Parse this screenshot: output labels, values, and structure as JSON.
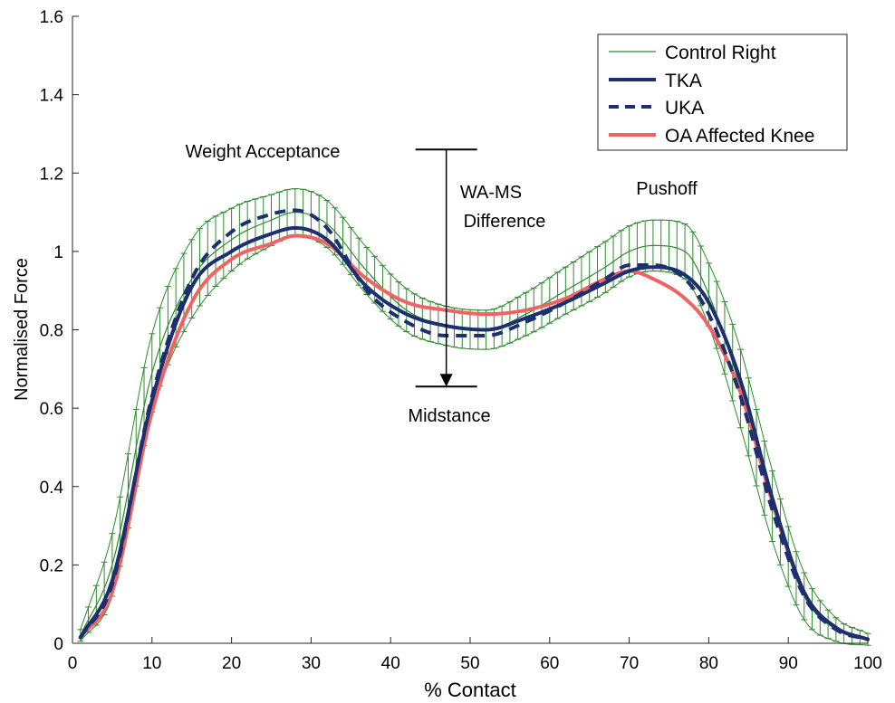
{
  "chart_data": {
    "type": "line",
    "xlabel": "% Contact",
    "ylabel": "Normalised Force",
    "xlim": [
      0,
      100
    ],
    "ylim": [
      0,
      1.6
    ],
    "xticks": [
      0,
      10,
      20,
      30,
      40,
      50,
      60,
      70,
      80,
      90,
      100
    ],
    "yticks": [
      0,
      0.2,
      0.4,
      0.6,
      0.8,
      1,
      1.2,
      1.4,
      1.6
    ],
    "grid": false,
    "legend_position": "top-right",
    "x": [
      1,
      5,
      10,
      15,
      20,
      25,
      28,
      32,
      37,
      42,
      47,
      52,
      57,
      62,
      67,
      70,
      73,
      77,
      80,
      84,
      88,
      92,
      96,
      100
    ],
    "series": [
      {
        "name": "Control Right",
        "style": "thin-green",
        "color": "#2e8b2e",
        "values": [
          0.02,
          0.2,
          0.69,
          0.93,
          1.03,
          1.08,
          1.1,
          1.07,
          0.95,
          0.85,
          0.81,
          0.8,
          0.84,
          0.9,
          0.96,
          1.0,
          1.015,
          1.0,
          0.89,
          0.65,
          0.35,
          0.12,
          0.035,
          0.01
        ],
        "error": [
          0.015,
          0.08,
          0.1,
          0.1,
          0.08,
          0.065,
          0.06,
          0.06,
          0.06,
          0.055,
          0.05,
          0.05,
          0.055,
          0.06,
          0.065,
          0.065,
          0.065,
          0.07,
          0.08,
          0.1,
          0.09,
          0.06,
          0.03,
          0.015
        ]
      },
      {
        "name": "TKA",
        "style": "thick-solid",
        "color": "#1c2f6e",
        "values": [
          0.015,
          0.16,
          0.62,
          0.91,
          1.0,
          1.045,
          1.06,
          1.03,
          0.91,
          0.84,
          0.81,
          0.8,
          0.83,
          0.87,
          0.92,
          0.95,
          0.96,
          0.94,
          0.87,
          0.67,
          0.37,
          0.13,
          0.04,
          0.01
        ]
      },
      {
        "name": "UKA",
        "style": "thick-dashed",
        "color": "#1c2f6e",
        "values": [
          0.015,
          0.15,
          0.63,
          0.93,
          1.05,
          1.095,
          1.105,
          1.06,
          0.9,
          0.82,
          0.785,
          0.785,
          0.82,
          0.87,
          0.93,
          0.965,
          0.965,
          0.93,
          0.84,
          0.63,
          0.34,
          0.12,
          0.035,
          0.01
        ]
      },
      {
        "name": "OA Affected Knee",
        "style": "thick-solid",
        "color": "#ee6363",
        "values": [
          0.015,
          0.13,
          0.59,
          0.87,
          0.98,
          1.02,
          1.04,
          1.02,
          0.93,
          0.87,
          0.85,
          0.84,
          0.85,
          0.88,
          0.93,
          0.95,
          0.93,
          0.88,
          0.81,
          0.64,
          0.36,
          0.13,
          0.04,
          0.01
        ]
      }
    ],
    "annotations": {
      "weight_acceptance": "Weight Acceptance",
      "difference_line1": "WA-MS",
      "difference_line2": "Difference",
      "midstance": "Midstance",
      "pushoff": "Pushoff"
    },
    "difference_marker": {
      "x": 47,
      "top": 1.26,
      "bottom": 0.655
    }
  }
}
